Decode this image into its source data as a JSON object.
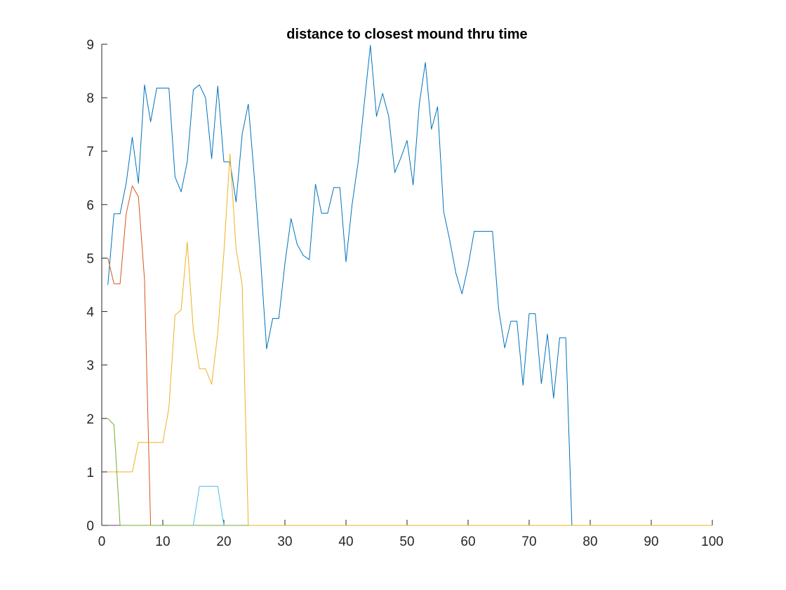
{
  "chart_data": {
    "type": "line",
    "title": "distance to closest mound thru time",
    "xlabel": "",
    "ylabel": "",
    "xlim": [
      0,
      100
    ],
    "ylim": [
      0,
      9
    ],
    "xticks": [
      0,
      10,
      20,
      30,
      40,
      50,
      60,
      70,
      80,
      90,
      100
    ],
    "yticks": [
      0,
      1,
      2,
      3,
      4,
      5,
      6,
      7,
      8,
      9
    ],
    "grid": false,
    "legend": "none",
    "series": [
      {
        "color": "#0072BD",
        "x": [
          1,
          2,
          3,
          4,
          5,
          6,
          7,
          8,
          9,
          10,
          11,
          12,
          13,
          14,
          15,
          16,
          17,
          18,
          19,
          20,
          21,
          22,
          23,
          24,
          25,
          26,
          27,
          28,
          29,
          30,
          31,
          32,
          33,
          34,
          35,
          36,
          37,
          38,
          39,
          40,
          41,
          42,
          43,
          44,
          45,
          46,
          47,
          48,
          49,
          50,
          51,
          52,
          53,
          54,
          55,
          56,
          57,
          58,
          59,
          60,
          61,
          62,
          63,
          64,
          65,
          66,
          67,
          68,
          69,
          70,
          71,
          72,
          73,
          74,
          75,
          76,
          77,
          78,
          79,
          80,
          81,
          82,
          83,
          84,
          85,
          86,
          87,
          88,
          89,
          90,
          91,
          92,
          93,
          94,
          95,
          96,
          97,
          98,
          99,
          100
        ],
        "y": [
          4.5,
          5.83,
          5.83,
          6.4,
          7.26,
          6.4,
          8.24,
          7.55,
          8.18,
          8.18,
          8.18,
          6.52,
          6.24,
          6.8,
          8.15,
          8.24,
          8.0,
          6.86,
          8.22,
          6.8,
          6.8,
          6.05,
          7.32,
          7.88,
          6.5,
          5.0,
          3.3,
          3.87,
          3.87,
          4.9,
          5.74,
          5.26,
          5.05,
          4.97,
          6.38,
          5.84,
          5.84,
          6.32,
          6.32,
          4.93,
          6.0,
          6.8,
          7.9,
          8.98,
          7.65,
          8.08,
          7.65,
          6.6,
          6.88,
          7.2,
          6.37,
          7.87,
          8.66,
          7.41,
          7.83,
          5.87,
          5.33,
          4.72,
          4.33,
          4.85,
          5.5,
          5.5,
          5.5,
          5.5,
          4.05,
          3.32,
          3.82,
          3.82,
          2.62,
          3.96,
          3.96,
          2.65,
          3.58,
          2.38,
          3.51,
          3.51,
          0,
          0,
          0,
          0,
          0,
          0,
          0,
          0,
          0,
          0,
          0,
          0,
          0,
          0,
          0,
          0,
          0,
          0,
          0,
          0,
          0,
          0,
          0,
          0
        ]
      },
      {
        "color": "#D95319",
        "x": [
          1,
          2,
          3,
          4,
          5,
          6,
          7,
          8,
          9,
          10,
          11,
          12,
          13,
          14,
          15,
          16,
          17,
          18,
          19,
          20,
          21,
          22,
          23,
          24
        ],
        "y": [
          5.0,
          4.52,
          4.52,
          5.83,
          6.35,
          6.15,
          4.6,
          0,
          0,
          0,
          0,
          0,
          0,
          0,
          0,
          0,
          0,
          0,
          0,
          0,
          0,
          0,
          0,
          0
        ]
      },
      {
        "color": "#EDB120",
        "x": [
          1,
          2,
          3,
          4,
          5,
          6,
          7,
          8,
          9,
          10,
          11,
          12,
          13,
          14,
          15,
          16,
          17,
          18,
          19,
          20,
          21,
          22,
          23,
          24,
          25,
          26,
          27,
          28,
          29,
          30,
          31,
          32,
          33,
          34,
          35,
          36,
          37,
          38,
          39,
          40,
          41,
          42,
          43,
          44,
          45,
          46,
          47,
          48,
          49,
          50,
          51,
          52,
          53,
          54,
          55,
          56,
          57,
          58,
          59,
          60,
          61,
          62,
          63,
          64,
          65,
          66,
          67,
          68,
          69,
          70,
          71,
          72,
          73,
          74,
          75,
          76,
          77,
          78,
          79,
          80,
          81,
          82,
          83,
          84,
          85,
          86,
          87,
          88,
          89,
          90,
          91,
          92,
          93,
          94,
          95,
          96,
          97,
          98,
          99,
          100
        ],
        "y": [
          1.0,
          1.0,
          1.0,
          1.0,
          1.0,
          1.55,
          1.55,
          1.55,
          1.55,
          1.55,
          2.2,
          3.93,
          4.03,
          5.3,
          3.65,
          2.93,
          2.93,
          2.64,
          3.6,
          5.1,
          6.95,
          5.17,
          4.5,
          0,
          0,
          0,
          0,
          0,
          0,
          0,
          0,
          0,
          0,
          0,
          0,
          0,
          0,
          0,
          0,
          0,
          0,
          0,
          0,
          0,
          0,
          0,
          0,
          0,
          0,
          0,
          0,
          0,
          0,
          0,
          0,
          0,
          0,
          0,
          0,
          0,
          0,
          0,
          0,
          0,
          0,
          0,
          0,
          0,
          0,
          0,
          0,
          0,
          0,
          0,
          0,
          0,
          0,
          0,
          0,
          0,
          0,
          0,
          0,
          0,
          0,
          0,
          0,
          0,
          0,
          0,
          0,
          0,
          0,
          0,
          0,
          0,
          0,
          0,
          0,
          0
        ]
      },
      {
        "color": "#7E2F8E",
        "x": [
          1,
          2,
          3,
          4,
          5,
          6,
          7,
          8,
          9,
          10,
          11,
          12,
          13,
          14,
          15,
          16,
          17,
          18,
          19,
          20,
          21,
          22,
          23,
          24
        ],
        "y": [
          0,
          0,
          0,
          0,
          0,
          0,
          0,
          0,
          0,
          0,
          0,
          0,
          0,
          0,
          0,
          0,
          0,
          0,
          0,
          0,
          0,
          0,
          0,
          0
        ]
      },
      {
        "color": "#77AC30",
        "x": [
          1,
          2,
          3,
          4,
          5,
          6,
          7,
          8,
          9,
          10,
          11,
          12,
          13,
          14,
          15,
          16,
          17,
          18,
          19,
          20,
          21,
          22,
          23,
          24
        ],
        "y": [
          2.0,
          1.88,
          0,
          0,
          0,
          0,
          0,
          0,
          0,
          0,
          0,
          0,
          0,
          0,
          0,
          0,
          0,
          0,
          0,
          0,
          0,
          0,
          0,
          0
        ]
      },
      {
        "color": "#4DBEEE",
        "x": [
          15,
          16,
          17,
          18,
          19,
          20
        ],
        "y": [
          0,
          0.73,
          0.73,
          0.73,
          0.73,
          0
        ]
      }
    ]
  }
}
